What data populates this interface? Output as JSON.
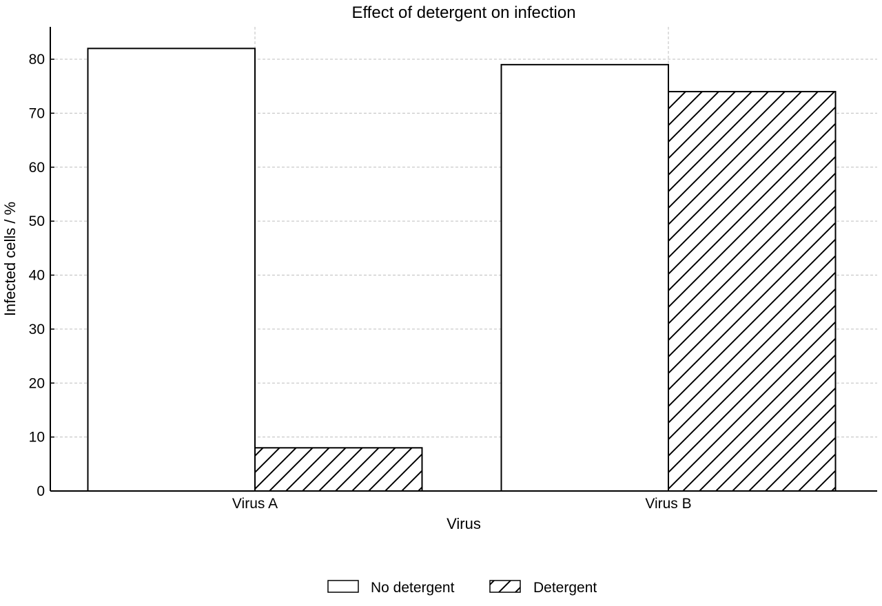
{
  "chart_data": {
    "type": "bar",
    "title": "Effect of detergent on infection",
    "xlabel": "Virus",
    "ylabel": "Infected cells / %",
    "categories": [
      "Virus A",
      "Virus B"
    ],
    "series": [
      {
        "name": "No detergent",
        "values": [
          82,
          79
        ],
        "fill": "plain"
      },
      {
        "name": "Detergent",
        "values": [
          8,
          74
        ],
        "fill": "hatched"
      }
    ],
    "ylim": [
      0,
      86
    ],
    "yticks": [
      0,
      10,
      20,
      30,
      40,
      50,
      60,
      70,
      80
    ],
    "grid": true,
    "legend_position": "bottom-center",
    "colors": {
      "bar_fill": "#ffffff",
      "bar_edge": "#000000",
      "grid": "#bdbdbd"
    }
  }
}
